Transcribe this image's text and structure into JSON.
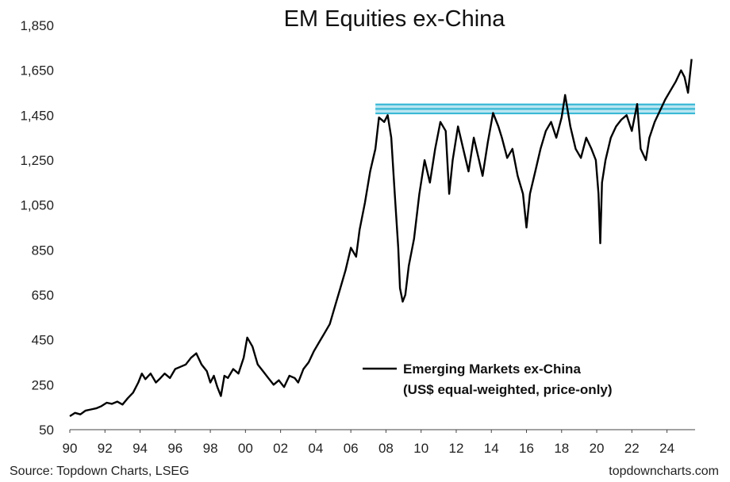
{
  "chart_data": {
    "type": "line",
    "title": "EM Equities ex-China",
    "xlabel": "",
    "ylabel": "",
    "xlim": [
      1990.0,
      2025.6
    ],
    "ylim": [
      50,
      1850
    ],
    "x_ticks": [
      "90",
      "92",
      "94",
      "96",
      "98",
      "00",
      "02",
      "04",
      "06",
      "08",
      "10",
      "12",
      "14",
      "16",
      "18",
      "20",
      "22",
      "24"
    ],
    "x_tick_values": [
      1990,
      1992,
      1994,
      1996,
      1998,
      2000,
      2002,
      2004,
      2006,
      2008,
      2010,
      2012,
      2014,
      2016,
      2018,
      2020,
      2022,
      2024
    ],
    "y_ticks": [
      "50",
      "250",
      "450",
      "650",
      "850",
      "1,050",
      "1,250",
      "1,450",
      "1,650",
      "1,850"
    ],
    "y_tick_values": [
      50,
      250,
      450,
      650,
      850,
      1050,
      1250,
      1450,
      1650,
      1850
    ],
    "grid": false,
    "legend_position": "bottom-right",
    "series": [
      {
        "name": "Emerging Markets ex-China",
        "name_line2": "(US$ equal-weighted, price-only)",
        "color": "#000000",
        "x": [
          1990.0,
          1990.3,
          1990.6,
          1990.9,
          1991.2,
          1991.5,
          1991.8,
          1992.1,
          1992.4,
          1992.7,
          1993.0,
          1993.3,
          1993.6,
          1993.9,
          1994.1,
          1994.3,
          1994.6,
          1994.9,
          1995.1,
          1995.4,
          1995.7,
          1996.0,
          1996.3,
          1996.6,
          1996.9,
          1997.2,
          1997.5,
          1997.8,
          1998.0,
          1998.2,
          1998.4,
          1998.6,
          1998.8,
          1999.0,
          1999.3,
          1999.6,
          1999.9,
          2000.1,
          2000.4,
          2000.7,
          2001.0,
          2001.3,
          2001.6,
          2001.9,
          2002.2,
          2002.5,
          2002.8,
          2003.0,
          2003.3,
          2003.6,
          2003.9,
          2004.2,
          2004.5,
          2004.8,
          2005.1,
          2005.4,
          2005.7,
          2006.0,
          2006.3,
          2006.5,
          2006.8,
          2007.1,
          2007.4,
          2007.6,
          2007.9,
          2008.1,
          2008.3,
          2008.5,
          2008.7,
          2008.8,
          2008.95,
          2009.1,
          2009.3,
          2009.6,
          2009.9,
          2010.2,
          2010.5,
          2010.8,
          2011.1,
          2011.4,
          2011.6,
          2011.8,
          2012.1,
          2012.4,
          2012.7,
          2013.0,
          2013.3,
          2013.5,
          2013.8,
          2014.1,
          2014.4,
          2014.6,
          2014.9,
          2015.2,
          2015.5,
          2015.8,
          2016.0,
          2016.2,
          2016.5,
          2016.8,
          2017.1,
          2017.4,
          2017.7,
          2018.0,
          2018.2,
          2018.5,
          2018.8,
          2019.1,
          2019.4,
          2019.7,
          2019.95,
          2020.1,
          2020.2,
          2020.3,
          2020.5,
          2020.8,
          2021.1,
          2021.4,
          2021.7,
          2022.0,
          2022.3,
          2022.5,
          2022.8,
          2023.0,
          2023.3,
          2023.6,
          2023.9,
          2024.2,
          2024.5,
          2024.8,
          2025.0,
          2025.2,
          2025.4
        ],
        "values": [
          110,
          125,
          118,
          135,
          140,
          145,
          155,
          170,
          165,
          175,
          162,
          190,
          215,
          260,
          300,
          275,
          300,
          260,
          275,
          300,
          280,
          320,
          330,
          340,
          370,
          390,
          340,
          310,
          260,
          290,
          240,
          200,
          290,
          280,
          320,
          300,
          370,
          460,
          420,
          340,
          310,
          280,
          250,
          270,
          240,
          290,
          280,
          260,
          320,
          350,
          400,
          440,
          480,
          520,
          600,
          680,
          760,
          860,
          820,
          940,
          1060,
          1200,
          1300,
          1440,
          1420,
          1450,
          1350,
          1100,
          860,
          680,
          620,
          650,
          780,
          900,
          1100,
          1250,
          1150,
          1300,
          1420,
          1380,
          1100,
          1250,
          1400,
          1300,
          1200,
          1350,
          1250,
          1180,
          1330,
          1460,
          1400,
          1350,
          1260,
          1300,
          1180,
          1100,
          950,
          1100,
          1200,
          1300,
          1380,
          1420,
          1350,
          1440,
          1540,
          1400,
          1300,
          1260,
          1350,
          1300,
          1250,
          1100,
          880,
          1150,
          1250,
          1350,
          1400,
          1430,
          1450,
          1380,
          1500,
          1300,
          1250,
          1350,
          1420,
          1470,
          1520,
          1560,
          1600,
          1650,
          1620,
          1550,
          1700
        ]
      }
    ],
    "annotations": [
      {
        "type": "horizontal_band",
        "y_values": [
          1458,
          1478,
          1498
        ],
        "x_from": 2007.4,
        "x_to": 2025.6,
        "color": "#3ab8d6"
      }
    ]
  },
  "footer": {
    "source": "Source: Topdown Charts, LSEG",
    "brand": "topdowncharts.com"
  }
}
